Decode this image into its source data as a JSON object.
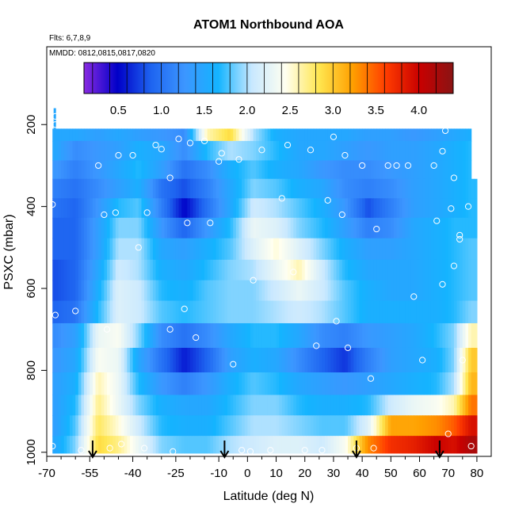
{
  "chart_data": {
    "type": "heatmap",
    "title": "ATOM1 Northbound AOA",
    "flights_note": "Flts: 6,7,8,9",
    "dates_note": "MMDD: 0812,0815,0817,0820",
    "xlabel": "Latitude (deg N)",
    "ylabel": "PSXC (mbar)",
    "xlim": [
      -70,
      85
    ],
    "ylim": [
      1010,
      10
    ],
    "x_ticks": [
      -70,
      -55,
      -40,
      -25,
      -10,
      0,
      10,
      20,
      30,
      40,
      50,
      60,
      70,
      80
    ],
    "x_tick_labels": [
      "-70",
      "-55",
      "-40",
      "-25",
      "-10",
      "0",
      "10",
      "20",
      "30",
      "40",
      "50",
      "60",
      "70",
      "80"
    ],
    "x_minor_ticks": [
      -65,
      -60,
      -50,
      -45,
      -35,
      -30,
      -20,
      -15,
      -5,
      5,
      15,
      25,
      35,
      45,
      55,
      65,
      75
    ],
    "y_ticks": [
      200,
      400,
      600,
      800,
      1000
    ],
    "y_tick_labels": [
      "200",
      "400",
      "600",
      "800",
      "1000"
    ],
    "colorbar": {
      "range": [
        0.1,
        4.4
      ],
      "ticks": [
        0.5,
        1.0,
        1.5,
        2.0,
        2.5,
        3.0,
        3.5,
        4.0
      ],
      "tick_labels": [
        "0.5",
        "1.0",
        "1.5",
        "2.0",
        "2.5",
        "3.0",
        "3.5",
        "4.0"
      ],
      "colors": [
        "#8a2be2",
        "#0000c8",
        "#1e64f0",
        "#3c96ff",
        "#14b4ff",
        "#c8e8ff",
        "#fffff0",
        "#ffe650",
        "#ffa000",
        "#ff3c00",
        "#c80000",
        "#8a1414"
      ]
    },
    "band_pressures": [
      215,
      265,
      310,
      355,
      405,
      450,
      505,
      555,
      605,
      655,
      715,
      775,
      835,
      885,
      935,
      985
    ],
    "band_bounds": [
      [
        210,
        1002
      ]
    ],
    "field_samples": {
      "note": "AOA values (years) along latitude for each pressure band",
      "lat": [
        -67,
        -60,
        -52,
        -45,
        -38,
        -30,
        -22,
        -14,
        -6,
        2,
        10,
        18,
        26,
        34,
        42,
        50,
        58,
        66,
        72,
        78
      ],
      "rows": [
        [
          1.5,
          1.5,
          1.4,
          1.5,
          1.4,
          1.3,
          1.2,
          2.6,
          2.9,
          2.0,
          1.6,
          1.5,
          1.5,
          1.5,
          1.4,
          1.4,
          1.3,
          1.4,
          1.5,
          1.6
        ],
        [
          1.5,
          1.2,
          1.3,
          1.4,
          1.6,
          1.5,
          1.2,
          1.7,
          2.0,
          1.9,
          1.7,
          1.5,
          1.5,
          1.4,
          1.3,
          1.4,
          1.4,
          1.5,
          1.6,
          1.7
        ],
        [
          1.3,
          1.1,
          1.3,
          1.5,
          1.7,
          1.4,
          1.0,
          1.2,
          1.6,
          1.8,
          1.6,
          1.5,
          1.3,
          1.2,
          1.2,
          1.3,
          1.4,
          1.5,
          1.6,
          1.7
        ],
        [
          1.1,
          1.0,
          1.2,
          1.4,
          1.6,
          1.0,
          0.8,
          1.1,
          1.5,
          1.9,
          1.8,
          1.6,
          1.5,
          1.2,
          1.1,
          1.2,
          1.4,
          1.5,
          1.6,
          1.7
        ],
        [
          1.0,
          0.9,
          1.3,
          1.7,
          1.8,
          1.1,
          0.5,
          1.0,
          1.5,
          2.1,
          2.0,
          1.8,
          1.6,
          1.3,
          0.8,
          1.1,
          1.4,
          1.5,
          1.6,
          1.7
        ],
        [
          0.9,
          0.9,
          1.4,
          1.9,
          1.9,
          1.3,
          0.9,
          1.3,
          1.7,
          2.3,
          2.2,
          1.9,
          1.7,
          1.4,
          1.1,
          1.2,
          1.5,
          1.6,
          1.7,
          1.7
        ],
        [
          0.9,
          0.9,
          1.4,
          2.0,
          2.0,
          1.5,
          1.4,
          1.6,
          1.8,
          2.2,
          2.5,
          2.2,
          1.9,
          1.6,
          1.4,
          1.4,
          1.5,
          1.6,
          1.7,
          1.8
        ],
        [
          0.8,
          0.9,
          1.5,
          2.1,
          2.0,
          1.6,
          1.5,
          1.7,
          1.9,
          2.0,
          2.3,
          2.6,
          2.1,
          1.7,
          1.5,
          1.5,
          1.5,
          1.6,
          1.7,
          1.8
        ],
        [
          0.8,
          0.9,
          1.6,
          2.2,
          2.1,
          1.7,
          1.6,
          1.8,
          1.9,
          1.9,
          2.1,
          2.3,
          2.1,
          1.8,
          1.6,
          1.5,
          1.5,
          1.6,
          1.7,
          1.8
        ],
        [
          0.9,
          1.0,
          1.7,
          2.2,
          2.1,
          1.8,
          1.7,
          1.8,
          1.9,
          1.9,
          2.0,
          2.1,
          2.0,
          1.8,
          1.6,
          1.6,
          1.6,
          1.6,
          1.7,
          1.9
        ],
        [
          1.2,
          1.4,
          2.3,
          2.4,
          1.9,
          1.2,
          1.0,
          1.2,
          1.5,
          1.7,
          1.7,
          1.5,
          1.2,
          1.1,
          1.3,
          1.4,
          1.5,
          1.7,
          1.9,
          2.6
        ],
        [
          1.3,
          1.5,
          2.4,
          2.3,
          1.5,
          1.0,
          0.6,
          0.9,
          1.4,
          1.6,
          1.5,
          1.2,
          0.9,
          0.7,
          1.1,
          1.4,
          1.5,
          1.6,
          1.9,
          3.0
        ],
        [
          1.4,
          1.6,
          2.6,
          2.3,
          1.7,
          1.3,
          1.1,
          1.3,
          1.6,
          1.8,
          1.7,
          1.5,
          1.4,
          1.3,
          1.4,
          1.5,
          1.6,
          1.7,
          2.0,
          3.1
        ],
        [
          1.4,
          1.7,
          2.7,
          2.3,
          1.9,
          1.6,
          1.5,
          1.5,
          1.7,
          1.9,
          1.9,
          1.7,
          1.6,
          1.6,
          1.7,
          2.1,
          2.3,
          2.4,
          2.6,
          3.4
        ],
        [
          1.4,
          1.8,
          2.8,
          2.5,
          2.1,
          1.7,
          1.6,
          1.6,
          1.8,
          2.0,
          2.0,
          1.9,
          1.8,
          1.8,
          2.2,
          3.2,
          3.2,
          3.3,
          3.5,
          3.9
        ],
        [
          1.5,
          1.9,
          2.9,
          2.7,
          2.3,
          1.9,
          1.8,
          1.8,
          2.0,
          2.1,
          2.2,
          2.2,
          2.1,
          2.4,
          3.3,
          3.7,
          3.8,
          4.0,
          3.9,
          4.2
        ]
      ]
    },
    "sample_points": [
      [
        -67,
        180
      ],
      [
        -67,
        200
      ],
      [
        -68,
        395
      ],
      [
        -67,
        665
      ],
      [
        -68,
        985
      ],
      [
        -60,
        655
      ],
      [
        -58,
        995
      ],
      [
        -52,
        300
      ],
      [
        -50,
        420
      ],
      [
        -49,
        700
      ],
      [
        -48,
        990
      ],
      [
        -46,
        415
      ],
      [
        -45,
        275
      ],
      [
        -44,
        980
      ],
      [
        -40,
        275
      ],
      [
        -38,
        500
      ],
      [
        -36,
        990
      ],
      [
        -35,
        415
      ],
      [
        -32,
        250
      ],
      [
        -30,
        260
      ],
      [
        -27,
        330
      ],
      [
        -27,
        700
      ],
      [
        -26,
        998
      ],
      [
        -24,
        235
      ],
      [
        -22,
        650
      ],
      [
        -21,
        440
      ],
      [
        -20,
        245
      ],
      [
        -18,
        720
      ],
      [
        -15,
        240
      ],
      [
        -13,
        440
      ],
      [
        -10,
        290
      ],
      [
        -9,
        270
      ],
      [
        -5,
        785
      ],
      [
        -3,
        285
      ],
      [
        -2,
        995
      ],
      [
        1,
        998
      ],
      [
        2,
        580
      ],
      [
        5,
        262
      ],
      [
        8,
        995
      ],
      [
        12,
        380
      ],
      [
        14,
        250
      ],
      [
        16,
        560
      ],
      [
        20,
        995
      ],
      [
        22,
        262
      ],
      [
        24,
        740
      ],
      [
        26,
        995
      ],
      [
        28,
        385
      ],
      [
        30,
        230
      ],
      [
        31,
        680
      ],
      [
        33,
        420
      ],
      [
        34,
        275
      ],
      [
        35,
        745
      ],
      [
        38,
        990
      ],
      [
        40,
        300
      ],
      [
        43,
        820
      ],
      [
        44,
        990
      ],
      [
        45,
        455
      ],
      [
        49,
        300
      ],
      [
        52,
        300
      ],
      [
        56,
        300
      ],
      [
        58,
        620
      ],
      [
        61,
        775
      ],
      [
        65,
        300
      ],
      [
        66,
        435
      ],
      [
        68,
        265
      ],
      [
        68,
        590
      ],
      [
        69,
        215
      ],
      [
        70,
        955
      ],
      [
        72,
        545
      ],
      [
        74,
        480
      ],
      [
        74,
        470
      ],
      [
        75,
        775
      ],
      [
        77,
        400
      ],
      [
        78,
        985
      ],
      [
        71,
        405
      ],
      [
        72,
        330
      ]
    ],
    "arrows_lat": [
      -54,
      -8,
      38,
      67
    ]
  }
}
